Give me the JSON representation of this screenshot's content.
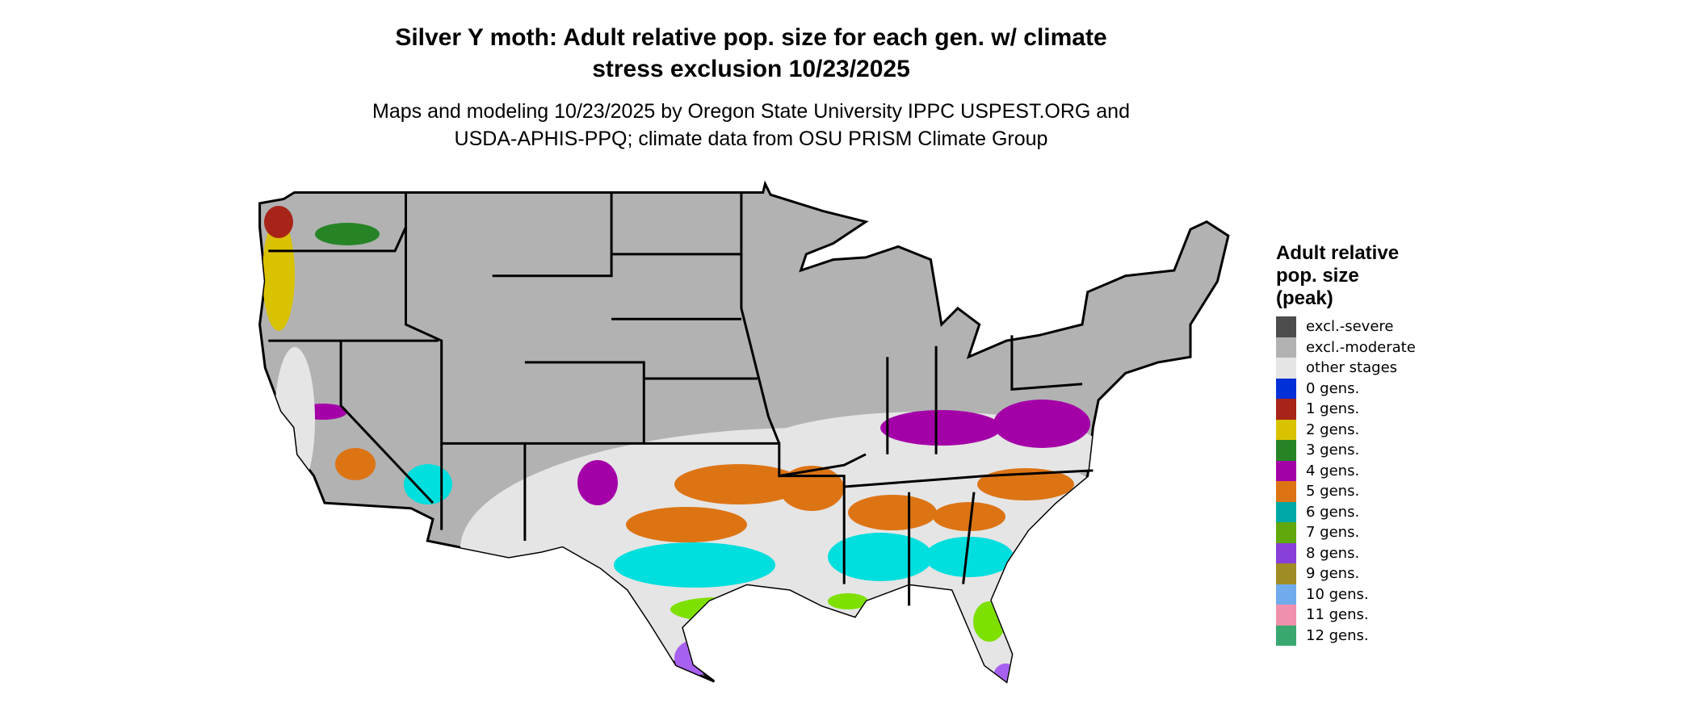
{
  "title": {
    "line1": "Silver Y moth: Adult relative pop. size for each gen. w/ climate",
    "line2": "stress exclusion 10/23/2025"
  },
  "subtitle": {
    "line1": "Maps and modeling 10/23/2025 by Oregon State University IPPC USPEST.ORG and",
    "line2": "USDA-APHIS-PPQ; climate data from OSU PRISM Climate Group"
  },
  "legend": {
    "title_lines": [
      "Adult relative",
      "pop. size",
      "(peak)"
    ],
    "items": [
      {
        "label": "excl.-severe",
        "color": "#4d4d4d"
      },
      {
        "label": "excl.-moderate",
        "color": "#b2b2b2"
      },
      {
        "label": "other stages",
        "color": "#e5e5e5"
      },
      {
        "label": "0 gens.",
        "color": "#0030d8"
      },
      {
        "label": "1 gens.",
        "color": "#a82418"
      },
      {
        "label": "2 gens.",
        "color": "#d9c200"
      },
      {
        "label": "3 gens.",
        "color": "#268426"
      },
      {
        "label": "4 gens.",
        "color": "#a400a8"
      },
      {
        "label": "5 gens.",
        "color": "#dc7414"
      },
      {
        "label": "6 gens.",
        "color": "#00a8a8"
      },
      {
        "label": "7 gens.",
        "color": "#60a80c"
      },
      {
        "label": "8 gens.",
        "color": "#8840d8"
      },
      {
        "label": "9 gens.",
        "color": "#a08c24"
      },
      {
        "label": "10 gens.",
        "color": "#70acec"
      },
      {
        "label": "11 gens.",
        "color": "#f090ac"
      },
      {
        "label": "12 gens.",
        "color": "#38a870"
      }
    ]
  }
}
